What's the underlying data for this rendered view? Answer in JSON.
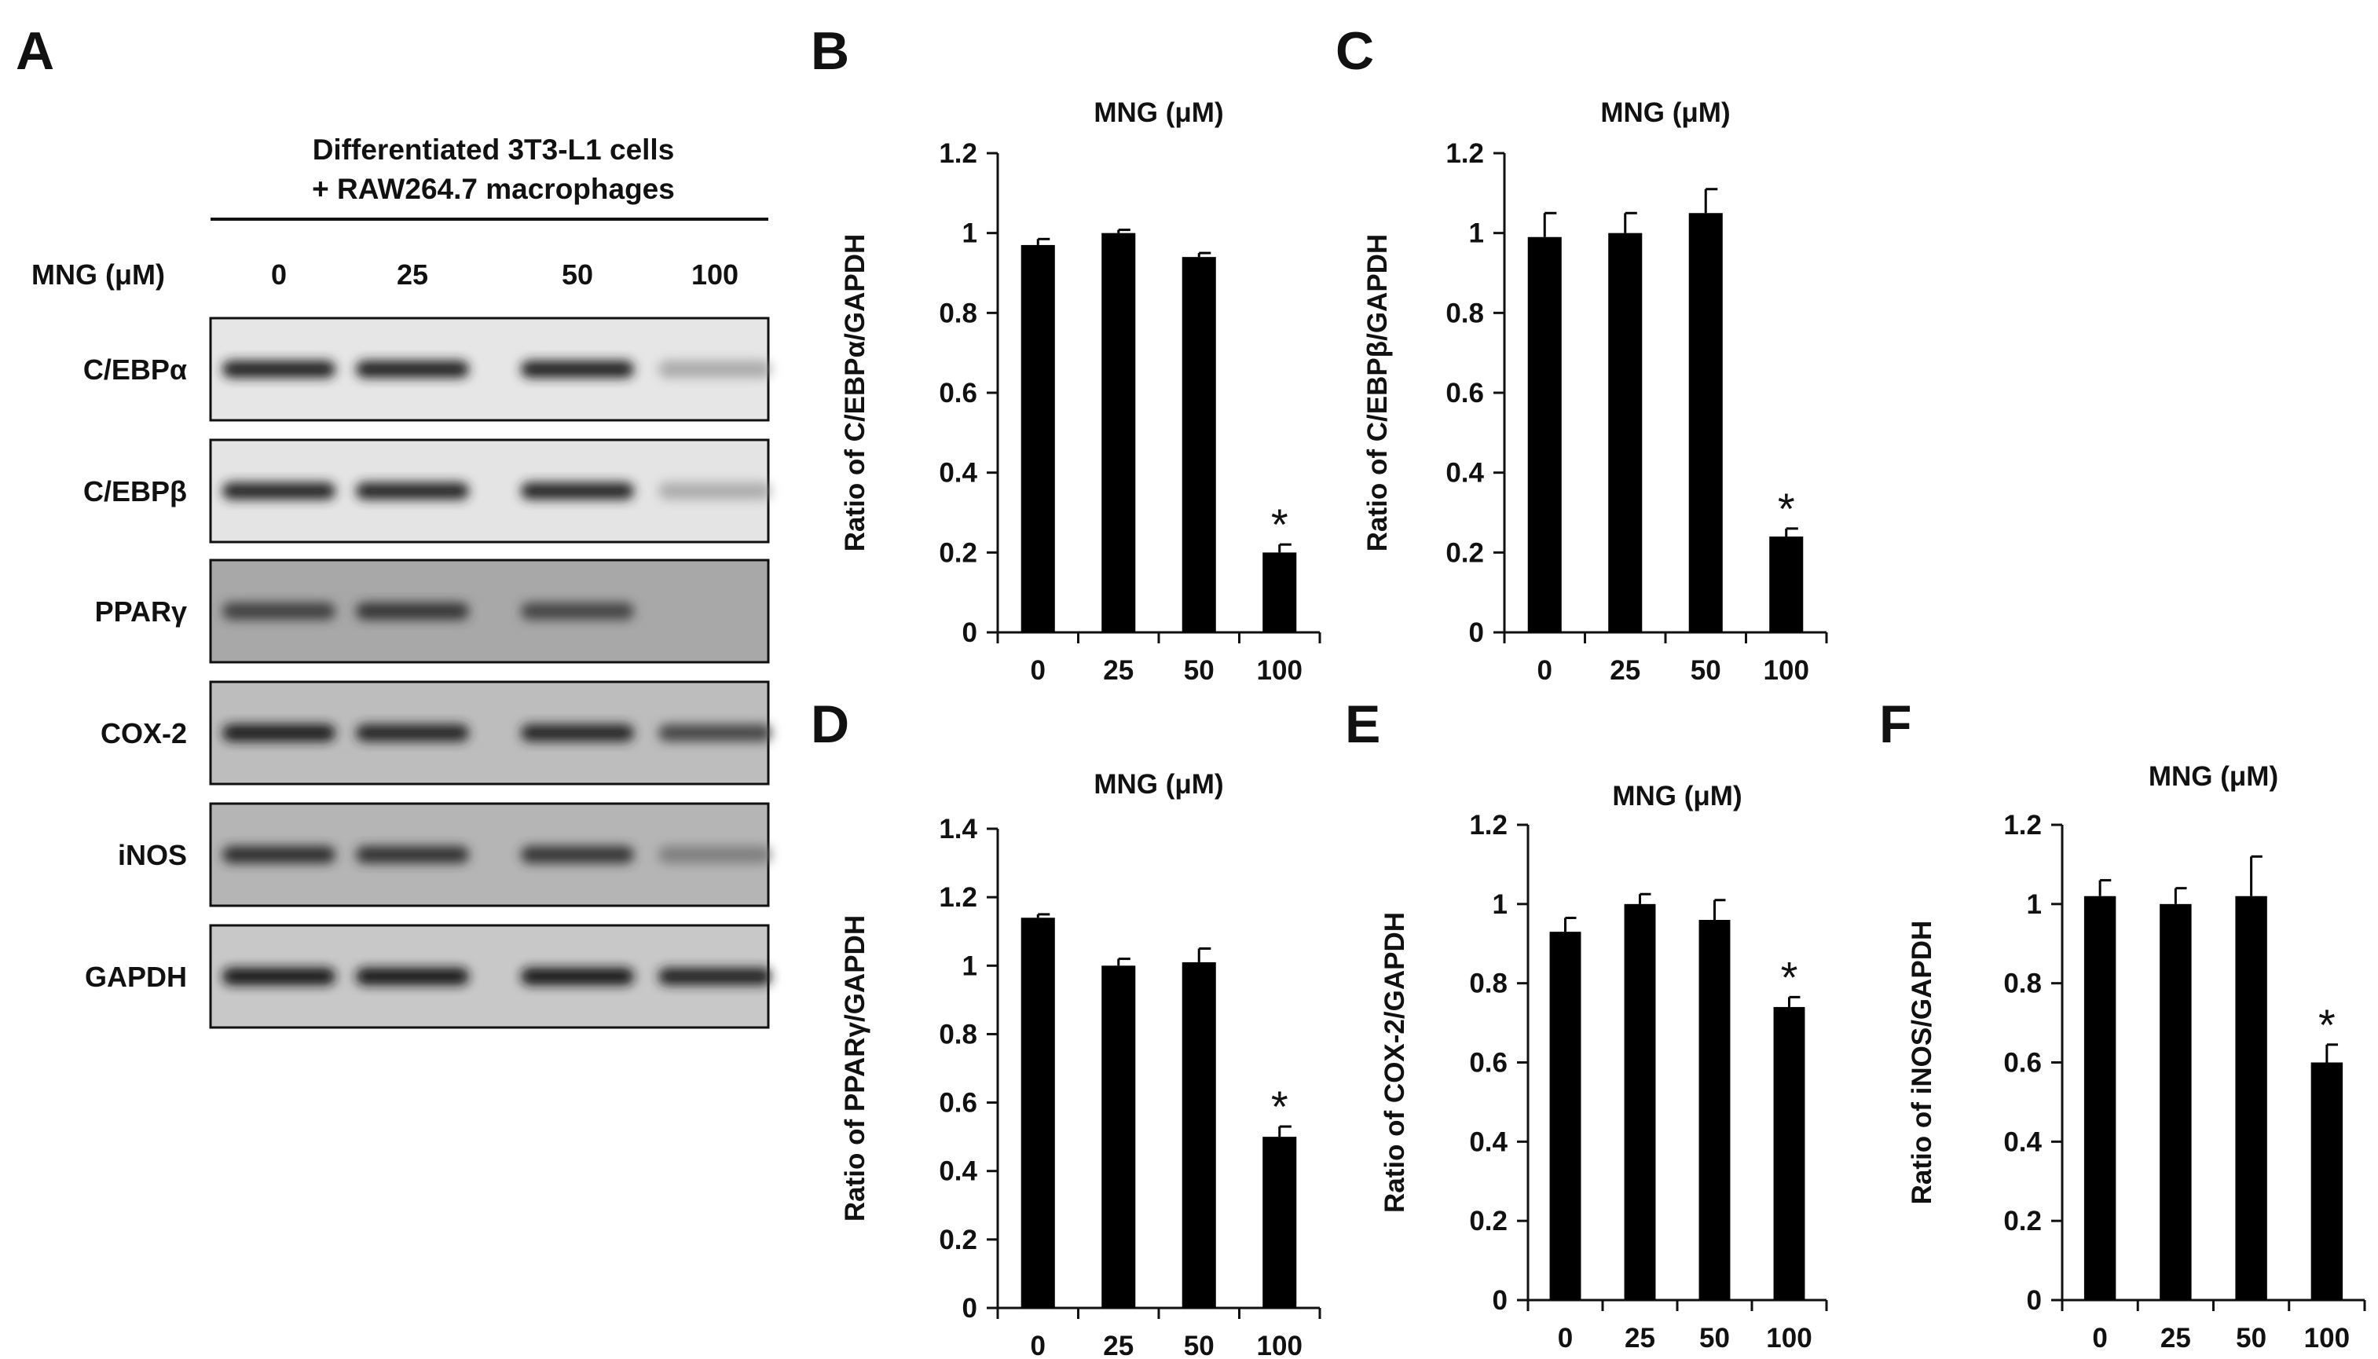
{
  "figure": {
    "panel_letters": [
      "A",
      "B",
      "C",
      "D",
      "E",
      "F"
    ]
  },
  "western_blot": {
    "header_line1": "Differentiated 3T3-L1 cells",
    "header_line2": "+ RAW264.7 macrophages",
    "dose_label": "MNG (μM)",
    "doses": [
      "0",
      "25",
      "50",
      "100"
    ],
    "proteins": [
      {
        "name": "C/EBPα",
        "band_intensity": [
          0.92,
          0.92,
          0.92,
          0.3
        ],
        "background": "#e6e6e6"
      },
      {
        "name": "C/EBPβ",
        "band_intensity": [
          0.88,
          0.88,
          0.88,
          0.28
        ],
        "background": "#e4e4e4"
      },
      {
        "name": "PPARγ",
        "band_intensity": [
          0.75,
          0.8,
          0.72,
          0.0
        ],
        "background": "#a8a8a8"
      },
      {
        "name": "COX-2",
        "band_intensity": [
          0.95,
          0.9,
          0.88,
          0.7
        ],
        "background": "#bdbdbd"
      },
      {
        "name": "iNOS",
        "band_intensity": [
          0.85,
          0.82,
          0.8,
          0.45
        ],
        "background": "#b5b5b5"
      },
      {
        "name": "GAPDH",
        "band_intensity": [
          1.0,
          1.0,
          1.0,
          0.92
        ],
        "background": "#c8c8c8"
      }
    ]
  },
  "chart_data": [
    {
      "panel": "B",
      "type": "bar",
      "title": "MNG (μM)",
      "ylabel": "Ratio of C/EBPα/GAPDH",
      "categories": [
        "0",
        "25",
        "50",
        "100"
      ],
      "values": [
        0.97,
        1.0,
        0.94,
        0.2
      ],
      "errors": [
        0.015,
        0.008,
        0.01,
        0.02
      ],
      "significance": [
        "",
        "",
        "",
        "*"
      ],
      "ylim": [
        0,
        1.2
      ],
      "yticks": [
        0,
        0.2,
        0.4,
        0.6,
        0.8,
        1,
        1.2
      ],
      "ytick_labels": [
        "0",
        "0.2",
        "0.4",
        "0.6",
        "0.8",
        "1",
        "1.2"
      ],
      "grid": false
    },
    {
      "panel": "C",
      "type": "bar",
      "title": "MNG (μM)",
      "ylabel": "Ratio of C/EBPβ/GAPDH",
      "categories": [
        "0",
        "25",
        "50",
        "100"
      ],
      "values": [
        0.99,
        1.0,
        1.05,
        0.24
      ],
      "errors": [
        0.06,
        0.05,
        0.06,
        0.02
      ],
      "significance": [
        "",
        "",
        "",
        "*"
      ],
      "ylim": [
        0,
        1.2
      ],
      "yticks": [
        0,
        0.2,
        0.4,
        0.6,
        0.8,
        1,
        1.2
      ],
      "ytick_labels": [
        "0",
        "0.2",
        "0.4",
        "0.6",
        "0.8",
        "1",
        "1.2"
      ],
      "grid": false
    },
    {
      "panel": "D",
      "type": "bar",
      "title": "MNG (μM)",
      "ylabel": "Ratio of PPARγ/GAPDH",
      "categories": [
        "0",
        "25",
        "50",
        "100"
      ],
      "values": [
        1.14,
        1.0,
        1.01,
        0.5
      ],
      "errors": [
        0.01,
        0.02,
        0.04,
        0.03
      ],
      "significance": [
        "",
        "",
        "",
        "*"
      ],
      "ylim": [
        0,
        1.4
      ],
      "yticks": [
        0,
        0.2,
        0.4,
        0.6,
        0.8,
        1,
        1.2,
        1.4
      ],
      "ytick_labels": [
        "0",
        "0.2",
        "0.4",
        "0.6",
        "0.8",
        "1",
        "1.2",
        "1.4"
      ],
      "grid": false
    },
    {
      "panel": "E",
      "type": "bar",
      "title": "MNG (μM)",
      "ylabel": "Ratio of COX-2/GAPDH",
      "categories": [
        "0",
        "25",
        "50",
        "100"
      ],
      "values": [
        0.93,
        1.0,
        0.96,
        0.74
      ],
      "errors": [
        0.035,
        0.025,
        0.05,
        0.025
      ],
      "significance": [
        "",
        "",
        "",
        "*"
      ],
      "ylim": [
        0,
        1.2
      ],
      "yticks": [
        0,
        0.2,
        0.4,
        0.6,
        0.8,
        1,
        1.2
      ],
      "ytick_labels": [
        "0",
        "0.2",
        "0.4",
        "0.6",
        "0.8",
        "1",
        "1.2"
      ],
      "grid": false
    },
    {
      "panel": "F",
      "type": "bar",
      "title": "MNG (μM)",
      "ylabel": "Ratio of iNOS/GAPDH",
      "categories": [
        "0",
        "25",
        "50",
        "100"
      ],
      "values": [
        1.02,
        1.0,
        1.02,
        0.6
      ],
      "errors": [
        0.04,
        0.04,
        0.1,
        0.045
      ],
      "significance": [
        "",
        "",
        "",
        "*"
      ],
      "ylim": [
        0,
        1.2
      ],
      "yticks": [
        0,
        0.2,
        0.4,
        0.6,
        0.8,
        1,
        1.2
      ],
      "ytick_labels": [
        "0",
        "0.2",
        "0.4",
        "0.6",
        "0.8",
        "1",
        "1.2"
      ],
      "grid": false
    }
  ]
}
